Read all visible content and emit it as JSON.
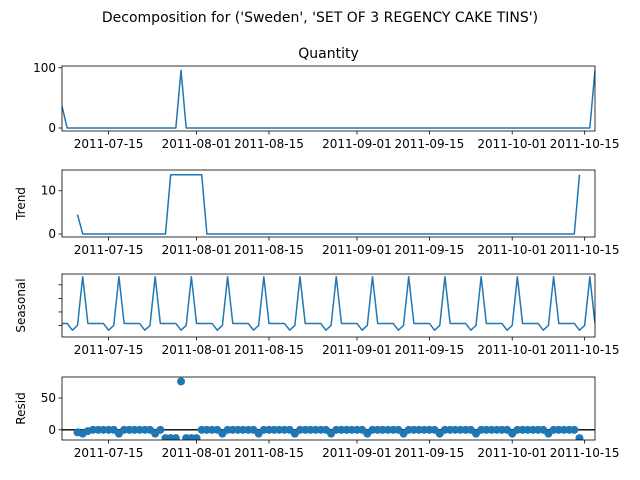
{
  "figure": {
    "suptitle": "Decomposition for ('Sweden', 'SET OF 3 REGENCY CAKE TINS')",
    "colors": {
      "line": "#1f77b4",
      "axis": "#000000",
      "zero_line": "#000000"
    }
  },
  "chart_data": [
    {
      "type": "line",
      "panel": "observed",
      "title": "Quantity",
      "ylabel": "",
      "ylim": [
        -5,
        103
      ],
      "yticks": [
        0,
        100
      ],
      "xlim": [
        "2011-07-06",
        "2011-10-17"
      ],
      "xticks": [
        "2011-07-15",
        "2011-08-01",
        "2011-08-15",
        "2011-09-01",
        "2011-09-15",
        "2011-10-01",
        "2011-10-15"
      ],
      "points": [
        [
          "2011-07-06",
          36
        ],
        [
          "2011-07-07",
          0
        ],
        [
          "2011-07-28",
          0
        ],
        [
          "2011-07-29",
          96
        ],
        [
          "2011-07-30",
          0
        ],
        [
          "2011-10-16",
          0
        ],
        [
          "2011-10-17",
          96
        ]
      ]
    },
    {
      "type": "line",
      "panel": "trend",
      "title": "",
      "ylabel": "Trend",
      "ylim": [
        -0.7,
        14.8
      ],
      "yticks": [
        0,
        10
      ],
      "xlim": [
        "2011-07-06",
        "2011-10-17"
      ],
      "xticks": [
        "2011-07-15",
        "2011-08-01",
        "2011-08-15",
        "2011-09-01",
        "2011-09-15",
        "2011-10-01",
        "2011-10-15"
      ],
      "points": [
        [
          "2011-07-09",
          4.5
        ],
        [
          "2011-07-10",
          0
        ],
        [
          "2011-07-26",
          0
        ],
        [
          "2011-07-27",
          13.7
        ],
        [
          "2011-08-02",
          13.7
        ],
        [
          "2011-08-03",
          0
        ],
        [
          "2011-10-13",
          0
        ],
        [
          "2011-10-14",
          13.7
        ]
      ]
    },
    {
      "type": "line",
      "panel": "seasonal",
      "title": "",
      "ylabel": "Seasonal",
      "ylim": [
        -2.7,
        6.6
      ],
      "yticks": [
        -1,
        1,
        3,
        5
      ],
      "yticklabels": [],
      "xlim": [
        "2011-07-06",
        "2011-10-17"
      ],
      "xticks": [
        "2011-07-15",
        "2011-08-01",
        "2011-08-15",
        "2011-09-01",
        "2011-09-15",
        "2011-10-01",
        "2011-10-15"
      ],
      "start": "2011-07-06",
      "pattern": [
        -0.7,
        -0.7,
        -1.7,
        -1.0,
        6.2,
        -0.7,
        -0.7
      ]
    },
    {
      "type": "scatter",
      "panel": "resid",
      "title": "",
      "ylabel": "Resid",
      "ylim": [
        -16,
        83
      ],
      "yticks": [
        0,
        50
      ],
      "zero_line": true,
      "xlim": [
        "2011-07-06",
        "2011-10-17"
      ],
      "xticks": [
        "2011-07-15",
        "2011-08-01",
        "2011-08-15",
        "2011-09-01",
        "2011-09-15",
        "2011-10-01",
        "2011-10-15"
      ],
      "default_resid": 0,
      "special_resid": {
        "2011-07-09": -4,
        "2011-07-10": -6,
        "2011-07-11": -2,
        "2011-07-17": -6,
        "2011-07-24": -6,
        "2011-07-26": -13,
        "2011-07-27": -13,
        "2011-07-28": -13,
        "2011-07-29": 76,
        "2011-07-30": -13,
        "2011-07-31": -13,
        "2011-08-01": -13,
        "2011-08-06": -6,
        "2011-08-13": -6,
        "2011-08-20": -6,
        "2011-08-27": -6,
        "2011-09-03": -6,
        "2011-09-10": -6,
        "2011-09-17": -6,
        "2011-09-24": -6,
        "2011-10-01": -6,
        "2011-10-08": -6,
        "2011-10-14": -13
      },
      "range": [
        "2011-07-09",
        "2011-10-14"
      ]
    }
  ]
}
